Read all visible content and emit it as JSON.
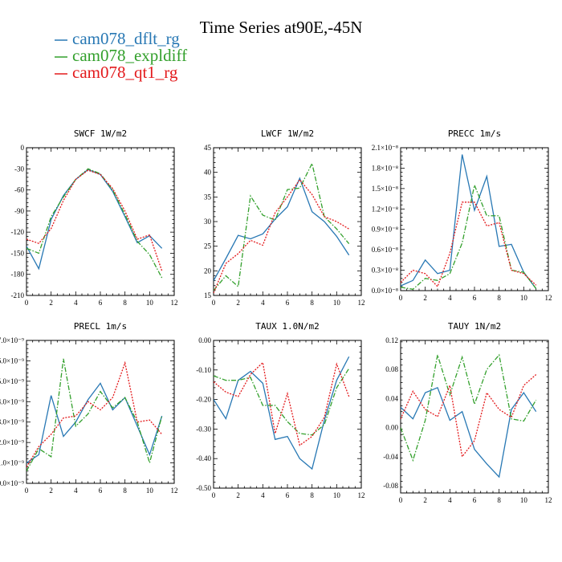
{
  "figure": {
    "title": "Time Series at90E,-45N",
    "legend": [
      {
        "label": "cam078_dflt_rg",
        "color": "#2878b4",
        "dash": "solid"
      },
      {
        "label": "cam078_expldiff",
        "color": "#33a02c",
        "dash": "dashdot"
      },
      {
        "label": "cam078_qt1_rg",
        "color": "#e31a1c",
        "dash": "dotted"
      }
    ]
  },
  "chart_data": [
    {
      "type": "line",
      "title": "SWCF",
      "units": "1W/m2",
      "xlim": [
        0,
        12
      ],
      "ylim": [
        -210,
        0
      ],
      "xticks": [
        0,
        2,
        4,
        6,
        8,
        10,
        12
      ],
      "yticks": [
        0,
        -30,
        -60,
        -90,
        -120,
        -150,
        -180,
        -210
      ],
      "ytick_labels": [
        "0",
        "-30",
        "-60",
        "-90",
        "-120",
        "-150",
        "-180",
        "-210"
      ],
      "x": [
        0,
        1,
        2,
        3,
        4,
        5,
        6,
        7,
        8,
        9,
        10,
        11
      ],
      "series": [
        {
          "name": "cam078_dflt_rg",
          "values": [
            -140,
            -172,
            -102,
            -68,
            -45,
            -31,
            -38,
            -62,
            -98,
            -135,
            -125,
            -143
          ]
        },
        {
          "name": "cam078_expldiff",
          "values": [
            -143,
            -150,
            -98,
            -70,
            -45,
            -30,
            -37,
            -60,
            -95,
            -133,
            -152,
            -185
          ]
        },
        {
          "name": "cam078_qt1_rg",
          "values": [
            -130,
            -136,
            -115,
            -75,
            -45,
            -32,
            -38,
            -58,
            -90,
            -130,
            -124,
            -175
          ]
        }
      ]
    },
    {
      "type": "line",
      "title": "LWCF",
      "units": "1W/m2",
      "xlim": [
        0,
        12
      ],
      "ylim": [
        15,
        45
      ],
      "xticks": [
        0,
        2,
        4,
        6,
        8,
        10,
        12
      ],
      "yticks": [
        15,
        20,
        25,
        30,
        35,
        40,
        45
      ],
      "ytick_labels": [
        "15",
        "20",
        "25",
        "30",
        "35",
        "40",
        "45"
      ],
      "x": [
        0,
        1,
        2,
        3,
        4,
        5,
        6,
        7,
        8,
        9,
        10,
        11
      ],
      "series": [
        {
          "name": "cam078_dflt_rg",
          "values": [
            18,
            22.5,
            27.2,
            26.5,
            27.5,
            30.5,
            33,
            38.8,
            32,
            30,
            27,
            23.2
          ]
        },
        {
          "name": "cam078_expldiff",
          "values": [
            16,
            19,
            16.8,
            35.2,
            31.3,
            30.3,
            36.5,
            36.8,
            41.8,
            31,
            28.5,
            25.5
          ]
        },
        {
          "name": "cam078_qt1_rg",
          "values": [
            15.5,
            21.5,
            23.5,
            26.2,
            25.2,
            31.8,
            35,
            38.5,
            35.5,
            31,
            30,
            28.5
          ]
        }
      ]
    },
    {
      "type": "line",
      "title": "PRECC",
      "units": "1m/s",
      "xlim": [
        0,
        12
      ],
      "ylim": [
        0,
        2.1
      ],
      "y_scale_note": "x10^-8",
      "xticks": [
        0,
        2,
        4,
        6,
        8,
        10,
        12
      ],
      "yticks": [
        0,
        0.3,
        0.6,
        0.9,
        1.2,
        1.5,
        1.8,
        2.1
      ],
      "ytick_labels": [
        "0.0×10⁻⁸",
        "0.3×10⁻⁸",
        "0.6×10⁻⁸",
        "0.9×10⁻⁸",
        "1.2×10⁻⁸",
        "1.5×10⁻⁸",
        "1.8×10⁻⁸",
        "2.1×10⁻⁸"
      ],
      "x": [
        0,
        1,
        2,
        3,
        4,
        5,
        6,
        7,
        8,
        9,
        10,
        11
      ],
      "series": [
        {
          "name": "cam078_dflt_rg",
          "values": [
            0.07,
            0.15,
            0.45,
            0.25,
            0.3,
            2.0,
            1.18,
            1.68,
            0.65,
            0.68,
            0.27,
            0.03
          ]
        },
        {
          "name": "cam078_expldiff",
          "values": [
            0.05,
            0.02,
            0.18,
            0.15,
            0.25,
            0.7,
            1.55,
            1.1,
            1.1,
            0.3,
            0.27,
            0.03
          ]
        },
        {
          "name": "cam078_qt1_rg",
          "values": [
            0.12,
            0.3,
            0.25,
            0.06,
            0.55,
            1.3,
            1.3,
            0.95,
            1.0,
            0.3,
            0.25,
            0.08
          ]
        }
      ]
    },
    {
      "type": "line",
      "title": "PRECL",
      "units": "1m/s",
      "xlim": [
        0,
        12
      ],
      "ylim": [
        0,
        7
      ],
      "y_scale_note": "x10^-9",
      "xticks": [
        0,
        2,
        4,
        6,
        8,
        10,
        12
      ],
      "yticks": [
        0,
        1,
        2,
        3,
        4,
        5,
        6,
        7
      ],
      "ytick_labels": [
        "0.0×10⁻⁹",
        "1.0×10⁻⁹",
        "2.0×10⁻⁹",
        "3.0×10⁻⁹",
        "4.0×10⁻⁹",
        "5.0×10⁻⁹",
        "6.0×10⁻⁹",
        "7.0×10⁻⁹"
      ],
      "x": [
        0,
        1,
        2,
        3,
        4,
        5,
        6,
        7,
        8,
        9,
        10,
        11
      ],
      "series": [
        {
          "name": "cam078_dflt_rg",
          "values": [
            1.0,
            1.4,
            4.3,
            2.3,
            3.0,
            4.1,
            4.9,
            3.6,
            4.2,
            2.8,
            1.4,
            3.3
          ]
        },
        {
          "name": "cam078_expldiff",
          "values": [
            0.6,
            1.7,
            1.3,
            6.1,
            2.8,
            3.4,
            4.5,
            3.7,
            4.2,
            3.0,
            1.0,
            3.3
          ]
        },
        {
          "name": "cam078_qt1_rg",
          "values": [
            0.8,
            1.8,
            2.4,
            3.2,
            3.3,
            4.0,
            3.6,
            4.2,
            5.9,
            3.0,
            3.1,
            2.4
          ]
        }
      ]
    },
    {
      "type": "line",
      "title": "TAUX",
      "units": "1.0N/m2",
      "xlim": [
        0,
        12
      ],
      "ylim": [
        -0.5,
        0.0
      ],
      "xticks": [
        0,
        2,
        4,
        6,
        8,
        10,
        12
      ],
      "yticks": [
        0.0,
        -0.1,
        -0.2,
        -0.3,
        -0.4,
        -0.5
      ],
      "ytick_labels": [
        "0.00",
        "-0.10",
        "-0.20",
        "-0.30",
        "-0.40",
        "-0.50"
      ],
      "x": [
        0,
        1,
        2,
        3,
        4,
        5,
        6,
        7,
        8,
        9,
        10,
        11
      ],
      "series": [
        {
          "name": "cam078_dflt_rg",
          "values": [
            -0.2,
            -0.265,
            -0.135,
            -0.105,
            -0.145,
            -0.335,
            -0.325,
            -0.4,
            -0.435,
            -0.27,
            -0.135,
            -0.055
          ]
        },
        {
          "name": "cam078_expldiff",
          "values": [
            -0.12,
            -0.135,
            -0.135,
            -0.125,
            -0.22,
            -0.22,
            -0.275,
            -0.315,
            -0.32,
            -0.285,
            -0.16,
            -0.095
          ]
        },
        {
          "name": "cam078_qt1_rg",
          "values": [
            -0.14,
            -0.175,
            -0.19,
            -0.115,
            -0.075,
            -0.315,
            -0.18,
            -0.355,
            -0.325,
            -0.26,
            -0.08,
            -0.19
          ]
        }
      ]
    },
    {
      "type": "line",
      "title": "TAUY",
      "units": "1N/m2",
      "xlim": [
        0,
        12
      ],
      "ylim": [
        -0.09,
        0.12
      ],
      "xticks": [
        0,
        2,
        4,
        6,
        8,
        10,
        12
      ],
      "yticks": [
        0.12,
        0.08,
        0.04,
        0.0,
        -0.04,
        -0.08
      ],
      "ytick_labels": [
        "0.12",
        "0.08",
        "0.04",
        "0.00",
        "-0.04",
        "-0.08"
      ],
      "x": [
        0,
        1,
        2,
        3,
        4,
        5,
        6,
        7,
        8,
        9,
        10,
        11
      ],
      "series": [
        {
          "name": "cam078_dflt_rg",
          "values": [
            0.028,
            0.012,
            0.048,
            0.055,
            0.01,
            0.022,
            -0.03,
            -0.05,
            -0.068,
            0.025,
            0.048,
            0.022
          ]
        },
        {
          "name": "cam078_expldiff",
          "values": [
            0.0,
            -0.045,
            0.01,
            0.1,
            0.045,
            0.097,
            0.032,
            0.08,
            0.1,
            0.012,
            0.009,
            0.038
          ]
        },
        {
          "name": "cam078_qt1_rg",
          "values": [
            0.012,
            0.05,
            0.025,
            0.015,
            0.058,
            -0.04,
            -0.018,
            0.048,
            0.025,
            0.014,
            0.058,
            0.073
          ]
        }
      ]
    }
  ]
}
